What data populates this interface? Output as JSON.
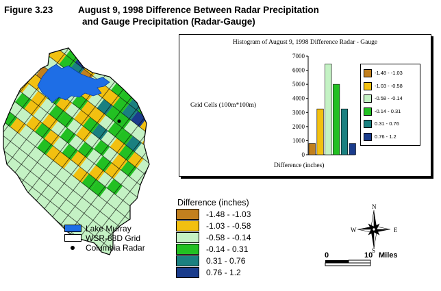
{
  "figure_number": "Figure 3.23",
  "title_line1": "August 9, 1998 Difference Between Radar Precipitation",
  "title_line2": "and Gauge Precipitation (Radar-Gauge)",
  "histogram": {
    "title": "Histogram of August 9, 1998 Difference Radar - Gauge",
    "ylabel": "Grid Cells (100m*100m)",
    "xlabel": "Difference (inches)"
  },
  "chart_data": {
    "type": "bar",
    "title": "Histogram of August 9, 1998 Difference Radar - Gauge",
    "xlabel": "Difference (inches)",
    "ylabel": "Grid Cells (100m*100m)",
    "ylim": [
      0,
      7000
    ],
    "yticks": [
      0,
      1000,
      2000,
      3000,
      4000,
      5000,
      6000,
      7000
    ],
    "categories": [
      "-1.48 - -1.03",
      "-1.03 - -0.58",
      "-0.58 - -0.14",
      "-0.14 - 0.31",
      "0.31 - 0.76",
      "0.76 - 1.2"
    ],
    "values": [
      800,
      3250,
      6450,
      5000,
      3250,
      800
    ],
    "colors": [
      "#c2801e",
      "#f2c010",
      "#c4f2c4",
      "#22c022",
      "#1a8080",
      "#1a3c8c"
    ],
    "legend_position": "right"
  },
  "difference_legend": {
    "title": "Difference (inches)",
    "items": [
      {
        "label": "-1.48 - -1.03",
        "color": "#c2801e"
      },
      {
        "label": "-1.03 - -0.58",
        "color": "#f2c010"
      },
      {
        "label": "-0.58 - -0.14",
        "color": "#c4f2c4"
      },
      {
        "label": "-0.14 - 0.31",
        "color": "#22c022"
      },
      {
        "label": "0.31 - 0.76",
        "color": "#1a8080"
      },
      {
        "label": "0.76 - 1.2",
        "color": "#1a3c8c"
      }
    ]
  },
  "map_legend": {
    "lake": {
      "label": "Lake Murray",
      "color": "#1e6ee6"
    },
    "grid": {
      "label": "WSR-88D Grid",
      "color": "#ffffff"
    },
    "radar": {
      "label": "Columbia Radar"
    }
  },
  "compass": {
    "n": "N",
    "s": "S",
    "e": "E",
    "w": "W"
  },
  "scale": {
    "start": "0",
    "end": "10",
    "unit": "Miles"
  }
}
